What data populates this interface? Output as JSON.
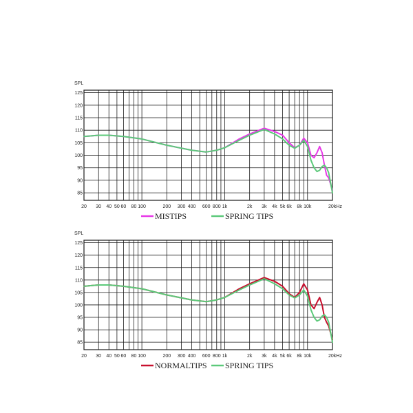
{
  "chart_data": [
    {
      "type": "line",
      "ylabel": "SPL",
      "xscale": "log",
      "xlim": [
        20,
        20000
      ],
      "ylim": [
        82,
        126
      ],
      "grid": true,
      "yticks": [
        85,
        90,
        95,
        100,
        105,
        110,
        115,
        120,
        125
      ],
      "xtick_labels": [
        {
          "v": 20,
          "t": "20"
        },
        {
          "v": 30,
          "t": "30"
        },
        {
          "v": 40,
          "t": "40"
        },
        {
          "v": 50,
          "t": "50"
        },
        {
          "v": 60,
          "t": "60"
        },
        {
          "v": 80,
          "t": "80"
        },
        {
          "v": 100,
          "t": "100"
        },
        {
          "v": 200,
          "t": "200"
        },
        {
          "v": 300,
          "t": "300"
        },
        {
          "v": 400,
          "t": "400"
        },
        {
          "v": 600,
          "t": "600"
        },
        {
          "v": 800,
          "t": "800"
        },
        {
          "v": 1000,
          "t": "1k"
        },
        {
          "v": 2000,
          "t": "2k"
        },
        {
          "v": 3000,
          "t": "3k"
        },
        {
          "v": 4000,
          "t": "4k"
        },
        {
          "v": 5000,
          "t": "5k"
        },
        {
          "v": 6000,
          "t": "6k"
        },
        {
          "v": 8000,
          "t": "8k"
        },
        {
          "v": 10000,
          "t": "10k"
        },
        {
          "v": 20000,
          "t": "20kHz"
        }
      ],
      "legend_position": "bottom-center",
      "series": [
        {
          "name": "MISTIPS",
          "color": "#e838e8",
          "points": [
            [
              20,
              107.5
            ],
            [
              30,
              108
            ],
            [
              40,
              108
            ],
            [
              60,
              107.5
            ],
            [
              100,
              106.5
            ],
            [
              200,
              104
            ],
            [
              400,
              102
            ],
            [
              600,
              101.3
            ],
            [
              800,
              102
            ],
            [
              1000,
              103
            ],
            [
              1500,
              106.5
            ],
            [
              2000,
              108.5
            ],
            [
              3000,
              110.8
            ],
            [
              4000,
              109.5
            ],
            [
              5000,
              108
            ],
            [
              6000,
              105
            ],
            [
              7000,
              103
            ],
            [
              8000,
              104
            ],
            [
              9000,
              106.8
            ],
            [
              10000,
              105
            ],
            [
              11000,
              100
            ],
            [
              12000,
              99
            ],
            [
              13000,
              101
            ],
            [
              14000,
              103.5
            ],
            [
              15000,
              101
            ],
            [
              16000,
              96
            ],
            [
              17000,
              92
            ],
            [
              18000,
              91
            ],
            [
              20000,
              86
            ]
          ]
        },
        {
          "name": "SPRING TIPS",
          "color": "#5cc97a",
          "points": [
            [
              20,
              107.5
            ],
            [
              30,
              108
            ],
            [
              40,
              108
            ],
            [
              60,
              107.5
            ],
            [
              100,
              106.5
            ],
            [
              200,
              104
            ],
            [
              400,
              102
            ],
            [
              600,
              101.3
            ],
            [
              800,
              102
            ],
            [
              1000,
              103
            ],
            [
              1500,
              106
            ],
            [
              2000,
              108
            ],
            [
              3000,
              110.3
            ],
            [
              4000,
              108.5
            ],
            [
              5000,
              106.5
            ],
            [
              6000,
              104
            ],
            [
              7000,
              102.8
            ],
            [
              8000,
              104
            ],
            [
              9000,
              106
            ],
            [
              10000,
              103.5
            ],
            [
              11000,
              98
            ],
            [
              12000,
              95
            ],
            [
              13000,
              93.5
            ],
            [
              14000,
              94
            ],
            [
              15000,
              95.5
            ],
            [
              16000,
              96
            ],
            [
              17000,
              95
            ],
            [
              18000,
              93
            ],
            [
              20000,
              85
            ]
          ]
        }
      ]
    },
    {
      "type": "line",
      "ylabel": "SPL",
      "xscale": "log",
      "xlim": [
        20,
        20000
      ],
      "ylim": [
        82,
        126
      ],
      "grid": true,
      "yticks": [
        85,
        90,
        95,
        100,
        105,
        110,
        115,
        120,
        125
      ],
      "xtick_labels": [
        {
          "v": 20,
          "t": "20"
        },
        {
          "v": 30,
          "t": "30"
        },
        {
          "v": 40,
          "t": "40"
        },
        {
          "v": 50,
          "t": "50"
        },
        {
          "v": 60,
          "t": "60"
        },
        {
          "v": 80,
          "t": "80"
        },
        {
          "v": 100,
          "t": "100"
        },
        {
          "v": 200,
          "t": "200"
        },
        {
          "v": 300,
          "t": "300"
        },
        {
          "v": 400,
          "t": "400"
        },
        {
          "v": 600,
          "t": "600"
        },
        {
          "v": 800,
          "t": "800"
        },
        {
          "v": 1000,
          "t": "1k"
        },
        {
          "v": 2000,
          "t": "2k"
        },
        {
          "v": 3000,
          "t": "3k"
        },
        {
          "v": 4000,
          "t": "4k"
        },
        {
          "v": 5000,
          "t": "5k"
        },
        {
          "v": 6000,
          "t": "6k"
        },
        {
          "v": 8000,
          "t": "8k"
        },
        {
          "v": 10000,
          "t": "10k"
        },
        {
          "v": 20000,
          "t": "20kHz"
        }
      ],
      "legend_position": "bottom-center",
      "series": [
        {
          "name": "NORMALTIPS",
          "color": "#c8102e",
          "points": [
            [
              20,
              107.5
            ],
            [
              30,
              108
            ],
            [
              40,
              108
            ],
            [
              60,
              107.5
            ],
            [
              100,
              106.5
            ],
            [
              200,
              104
            ],
            [
              400,
              102
            ],
            [
              600,
              101.3
            ],
            [
              800,
              102
            ],
            [
              1000,
              103
            ],
            [
              1500,
              106.5
            ],
            [
              2000,
              108.5
            ],
            [
              3000,
              111
            ],
            [
              4000,
              109.5
            ],
            [
              5000,
              107.5
            ],
            [
              6000,
              104.5
            ],
            [
              7000,
              103
            ],
            [
              8000,
              105
            ],
            [
              9000,
              108.5
            ],
            [
              10000,
              106
            ],
            [
              11000,
              100
            ],
            [
              12000,
              98.5
            ],
            [
              13000,
              101
            ],
            [
              14000,
              103
            ],
            [
              15000,
              100
            ],
            [
              16000,
              95
            ],
            [
              17000,
              93
            ],
            [
              18000,
              91.5
            ],
            [
              20000,
              86
            ]
          ]
        },
        {
          "name": "SPRING TIPS",
          "color": "#5cc97a",
          "points": [
            [
              20,
              107.5
            ],
            [
              30,
              108
            ],
            [
              40,
              108
            ],
            [
              60,
              107.5
            ],
            [
              100,
              106.5
            ],
            [
              200,
              104
            ],
            [
              400,
              102
            ],
            [
              600,
              101.3
            ],
            [
              800,
              102
            ],
            [
              1000,
              103
            ],
            [
              1500,
              106
            ],
            [
              2000,
              108
            ],
            [
              3000,
              110.5
            ],
            [
              4000,
              108.5
            ],
            [
              5000,
              106.5
            ],
            [
              6000,
              104
            ],
            [
              7000,
              102.8
            ],
            [
              8000,
              104
            ],
            [
              9000,
              106
            ],
            [
              10000,
              103.5
            ],
            [
              11000,
              98
            ],
            [
              12000,
              95
            ],
            [
              13000,
              93.5
            ],
            [
              14000,
              94
            ],
            [
              15000,
              95.5
            ],
            [
              16000,
              96
            ],
            [
              17000,
              95
            ],
            [
              18000,
              93
            ],
            [
              20000,
              85
            ]
          ]
        }
      ]
    }
  ]
}
